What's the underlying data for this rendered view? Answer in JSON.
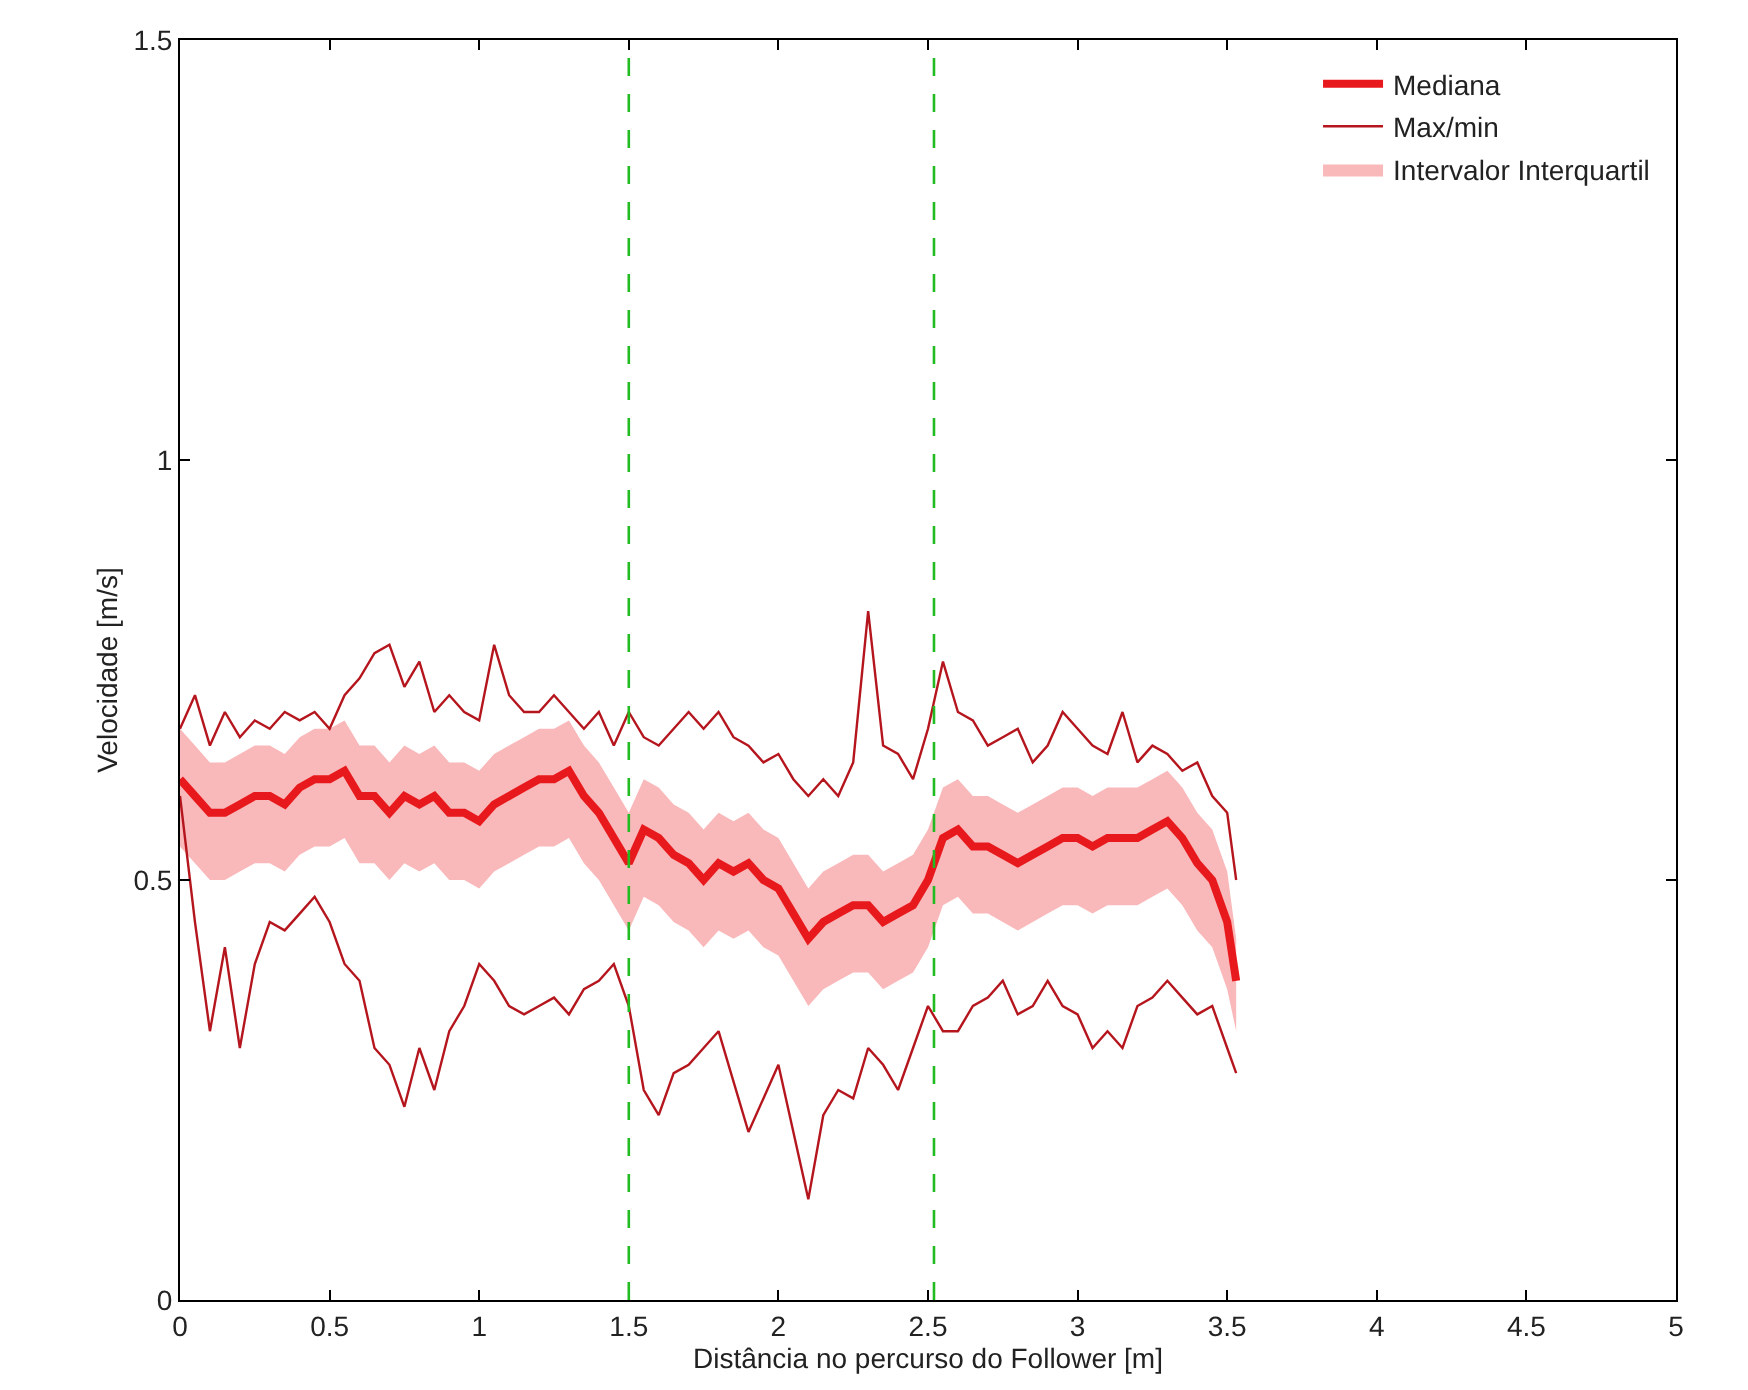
{
  "chart_data": {
    "type": "line",
    "xlabel": "Distância no percurso do Follower [m]",
    "ylabel": "Velocidade [m/s]",
    "x": [
      0,
      0.05,
      0.1,
      0.15,
      0.2,
      0.25,
      0.3,
      0.35,
      0.4,
      0.45,
      0.5,
      0.55,
      0.6,
      0.65,
      0.7,
      0.75,
      0.8,
      0.85,
      0.9,
      0.95,
      1.0,
      1.05,
      1.1,
      1.15,
      1.2,
      1.25,
      1.3,
      1.35,
      1.4,
      1.45,
      1.5,
      1.55,
      1.6,
      1.65,
      1.7,
      1.75,
      1.8,
      1.85,
      1.9,
      1.95,
      2.0,
      2.05,
      2.1,
      2.15,
      2.2,
      2.25,
      2.3,
      2.35,
      2.4,
      2.45,
      2.5,
      2.55,
      2.6,
      2.65,
      2.7,
      2.75,
      2.8,
      2.85,
      2.9,
      2.95,
      3.0,
      3.05,
      3.1,
      3.15,
      3.2,
      3.25,
      3.3,
      3.35,
      3.4,
      3.45,
      3.5,
      3.53
    ],
    "series": [
      {
        "name": "Mediana",
        "color": "#e8191c",
        "upper": [
          0.68,
          0.66,
          0.64,
          0.64,
          0.65,
          0.66,
          0.66,
          0.65,
          0.67,
          0.68,
          0.68,
          0.69,
          0.66,
          0.66,
          0.64,
          0.66,
          0.65,
          0.66,
          0.64,
          0.64,
          0.63,
          0.65,
          0.66,
          0.67,
          0.68,
          0.68,
          0.69,
          0.66,
          0.64,
          0.61,
          0.58,
          0.62,
          0.61,
          0.59,
          0.58,
          0.56,
          0.58,
          0.57,
          0.58,
          0.56,
          0.55,
          0.52,
          0.49,
          0.51,
          0.52,
          0.53,
          0.53,
          0.51,
          0.52,
          0.53,
          0.56,
          0.61,
          0.62,
          0.6,
          0.6,
          0.59,
          0.58,
          0.59,
          0.6,
          0.61,
          0.61,
          0.6,
          0.61,
          0.61,
          0.61,
          0.62,
          0.63,
          0.61,
          0.58,
          0.56,
          0.51,
          0.43
        ],
        "lower": [
          0.54,
          0.52,
          0.5,
          0.5,
          0.51,
          0.52,
          0.52,
          0.51,
          0.53,
          0.54,
          0.54,
          0.55,
          0.52,
          0.52,
          0.5,
          0.52,
          0.51,
          0.52,
          0.5,
          0.5,
          0.49,
          0.51,
          0.52,
          0.53,
          0.54,
          0.54,
          0.55,
          0.52,
          0.5,
          0.47,
          0.44,
          0.48,
          0.47,
          0.45,
          0.44,
          0.42,
          0.44,
          0.43,
          0.44,
          0.42,
          0.41,
          0.38,
          0.35,
          0.37,
          0.38,
          0.39,
          0.39,
          0.37,
          0.38,
          0.39,
          0.42,
          0.47,
          0.48,
          0.46,
          0.46,
          0.45,
          0.44,
          0.45,
          0.46,
          0.47,
          0.47,
          0.46,
          0.47,
          0.47,
          0.47,
          0.48,
          0.49,
          0.47,
          0.44,
          0.42,
          0.37,
          0.32
        ],
        "values": [
          0.62,
          0.6,
          0.58,
          0.58,
          0.59,
          0.6,
          0.6,
          0.59,
          0.61,
          0.62,
          0.62,
          0.63,
          0.6,
          0.6,
          0.58,
          0.6,
          0.59,
          0.6,
          0.58,
          0.58,
          0.57,
          0.59,
          0.6,
          0.61,
          0.62,
          0.62,
          0.63,
          0.6,
          0.58,
          0.55,
          0.52,
          0.56,
          0.55,
          0.53,
          0.52,
          0.5,
          0.52,
          0.51,
          0.52,
          0.5,
          0.49,
          0.46,
          0.43,
          0.45,
          0.46,
          0.47,
          0.47,
          0.45,
          0.46,
          0.47,
          0.5,
          0.55,
          0.56,
          0.54,
          0.54,
          0.53,
          0.52,
          0.53,
          0.54,
          0.55,
          0.55,
          0.54,
          0.55,
          0.55,
          0.55,
          0.56,
          0.57,
          0.55,
          0.52,
          0.5,
          0.45,
          0.38
        ]
      },
      {
        "name": "Max/min",
        "color": "#b5161e",
        "values": [
          0.68,
          0.72,
          0.66,
          0.7,
          0.67,
          0.69,
          0.68,
          0.7,
          0.69,
          0.7,
          0.68,
          0.72,
          0.74,
          0.77,
          0.78,
          0.73,
          0.76,
          0.7,
          0.72,
          0.7,
          0.69,
          0.78,
          0.72,
          0.7,
          0.7,
          0.72,
          0.7,
          0.68,
          0.7,
          0.66,
          0.7,
          0.67,
          0.66,
          0.68,
          0.7,
          0.68,
          0.7,
          0.67,
          0.66,
          0.64,
          0.65,
          0.62,
          0.6,
          0.62,
          0.6,
          0.64,
          0.82,
          0.66,
          0.65,
          0.62,
          0.68,
          0.76,
          0.7,
          0.69,
          0.66,
          0.67,
          0.68,
          0.64,
          0.66,
          0.7,
          0.68,
          0.66,
          0.65,
          0.7,
          0.64,
          0.66,
          0.65,
          0.63,
          0.64,
          0.6,
          0.58,
          0.5
        ]
      },
      {
        "color": "#b5161e",
        "values": [
          0.6,
          0.45,
          0.32,
          0.42,
          0.3,
          0.4,
          0.45,
          0.44,
          0.46,
          0.48,
          0.45,
          0.4,
          0.38,
          0.3,
          0.28,
          0.23,
          0.3,
          0.25,
          0.32,
          0.35,
          0.4,
          0.38,
          0.35,
          0.34,
          0.35,
          0.36,
          0.34,
          0.37,
          0.38,
          0.4,
          0.35,
          0.25,
          0.22,
          0.27,
          0.28,
          0.3,
          0.32,
          0.26,
          0.2,
          0.24,
          0.28,
          0.2,
          0.12,
          0.22,
          0.25,
          0.24,
          0.3,
          0.28,
          0.25,
          0.3,
          0.35,
          0.32,
          0.32,
          0.35,
          0.36,
          0.38,
          0.34,
          0.35,
          0.38,
          0.35,
          0.34,
          0.3,
          0.32,
          0.3,
          0.35,
          0.36,
          0.38,
          0.36,
          0.34,
          0.35,
          0.3,
          0.27
        ]
      },
      {
        "name": "Intervalor Interquartil",
        "type": "area",
        "color": "#f9b8ba",
        "values": [
          null,
          null,
          null,
          null,
          null,
          null,
          null,
          null,
          null,
          null,
          null,
          null,
          null,
          null,
          null,
          null,
          null,
          null,
          null,
          null,
          null,
          null,
          null,
          null,
          null,
          null,
          null,
          null,
          null,
          null,
          null,
          null,
          null,
          null,
          null,
          null,
          null,
          null,
          null,
          null,
          null,
          null,
          null,
          null,
          null,
          null,
          null,
          null,
          null,
          null,
          null,
          null,
          null,
          null,
          null,
          null,
          null,
          null,
          null,
          null,
          null,
          null,
          null,
          null,
          null,
          null,
          null,
          null,
          null,
          null,
          null,
          null
        ]
      }
    ],
    "ref_lines": [
      {
        "axis": "x",
        "value": 1.5,
        "color": "#22bb22",
        "line_style": "dashed"
      },
      {
        "axis": "x",
        "value": 2.52,
        "color": "#22bb22",
        "line_style": "dashed"
      }
    ],
    "xlim": [
      0,
      5
    ],
    "xticks": [
      0,
      0.5,
      1,
      1.5,
      2,
      2.5,
      3,
      3.5,
      4,
      4.5,
      5
    ],
    "ylim": [
      0,
      1.5
    ],
    "yticks": [
      0,
      0.5,
      1,
      1.5
    ],
    "legend": "top right",
    "marker": "none",
    "line_style": "solid"
  }
}
